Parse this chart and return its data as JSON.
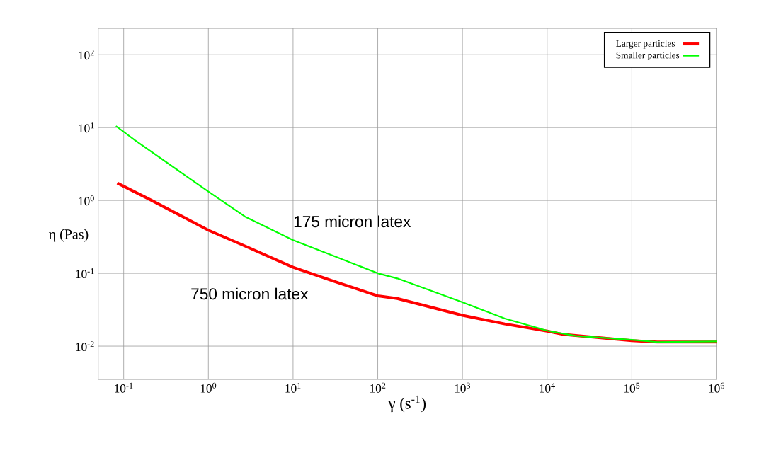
{
  "chart_data": {
    "type": "line",
    "xlabel": "γ (s$^{-1}$)",
    "ylabel": "η (Pas)",
    "log": "xy",
    "grid": true,
    "legend": "top right",
    "line_style": "solid",
    "marker": "none",
    "xlim": [
      0.05,
      1000000
    ],
    "ylim": [
      0.0035,
      230
    ],
    "xticks": [
      {
        "value": 0.1,
        "label": "10$^{-1}$"
      },
      {
        "value": 1,
        "label": "10$^{0}$"
      },
      {
        "value": 10,
        "label": "10$^{1}$"
      },
      {
        "value": 100,
        "label": "10$^{2}$"
      },
      {
        "value": 1000,
        "label": "10$^{3}$"
      },
      {
        "value": 10000,
        "label": "10$^{4}$"
      },
      {
        "value": 100000,
        "label": "10$^{5}$"
      },
      {
        "value": 1000000,
        "label": "10$^{6}$"
      }
    ],
    "yticks": [
      {
        "value": 0.01,
        "label": "10$^{-2}$"
      },
      {
        "value": 0.1,
        "label": "10$^{-1}$"
      },
      {
        "value": 1,
        "label": "10$^{0}$"
      },
      {
        "value": 10,
        "label": "10$^{1}$"
      },
      {
        "value": 100,
        "label": "10$^{2}$"
      }
    ],
    "series": [
      {
        "name": "Larger particles",
        "color": "#ff0000",
        "x": [
          0.084,
          0.214,
          1,
          2.7,
          10,
          31.6,
          100,
          170,
          1000,
          3162,
          10000,
          15000,
          100000,
          200000,
          1000000
        ],
        "values": [
          1.73,
          1.0,
          0.39,
          0.237,
          0.121,
          0.0765,
          0.049,
          0.045,
          0.0265,
          0.0202,
          0.0161,
          0.0146,
          0.0119,
          0.0114,
          0.0114
        ]
      },
      {
        "name": "Smaller particles",
        "color": "#00ff00",
        "x": [
          0.081,
          0.136,
          1,
          2.7,
          10,
          31.6,
          100,
          170,
          1000,
          3162,
          10000,
          22000,
          100000,
          200000,
          1000000
        ],
        "values": [
          10.5,
          6.7,
          1.32,
          0.6,
          0.285,
          0.17,
          0.1,
          0.085,
          0.04,
          0.024,
          0.0163,
          0.0138,
          0.0122,
          0.0114,
          0.0116
        ]
      }
    ],
    "annotations": [
      "175 micron latex",
      "750 micron latex"
    ]
  }
}
